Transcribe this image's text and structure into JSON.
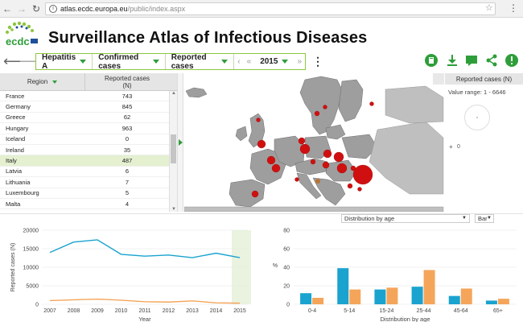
{
  "browser": {
    "url_host": "atlas.ecdc.europa.eu",
    "url_path": "/public/index.aspx"
  },
  "header": {
    "logo_text": "ecdc",
    "title": "Surveillance Atlas of Infectious Diseases"
  },
  "toolbar": {
    "disease": "Hepatitis A",
    "indicator": "Confirmed cases",
    "measure": "Reported cases",
    "year": "2015"
  },
  "table": {
    "col_region": "Region",
    "col_cases_line1": "Reported cases",
    "col_cases_line2": "(N)",
    "rows": [
      {
        "region": "France",
        "value": "743"
      },
      {
        "region": "Germany",
        "value": "845"
      },
      {
        "region": "Greece",
        "value": "62"
      },
      {
        "region": "Hungary",
        "value": "963"
      },
      {
        "region": "Iceland",
        "value": "0"
      },
      {
        "region": "Ireland",
        "value": "35"
      },
      {
        "region": "Italy",
        "value": "487",
        "selected": true
      },
      {
        "region": "Latvia",
        "value": "6"
      },
      {
        "region": "Lithuania",
        "value": "7"
      },
      {
        "region": "Luxembourg",
        "value": "5"
      },
      {
        "region": "Malta",
        "value": "4"
      }
    ]
  },
  "legend": {
    "title": "Reported cases (N)",
    "value_range": "Value range: 1 - 6646",
    "plus": "+",
    "zero": "0"
  },
  "controls": {
    "distribution_select": "Distribution by age",
    "chart_type_select": "Bar"
  },
  "colors": {
    "accent_green": "#2e9e3a",
    "map_land": "#9e9e9e",
    "bubble_red": "#d01010",
    "line_blue": "#1aa3cf",
    "line_orange": "#f5a55a"
  },
  "icons": [
    "back-arrow-icon",
    "forward-arrow-icon",
    "book-icon",
    "download-icon",
    "comment-icon",
    "share-icon",
    "info-icon"
  ],
  "chart_data": [
    {
      "type": "line",
      "title": "",
      "xlabel": "Year",
      "ylabel": "Reported cases (N)",
      "x": [
        "2007",
        "2008",
        "2009",
        "2010",
        "2011",
        "2012",
        "2013",
        "2014",
        "2015"
      ],
      "ylim": [
        0,
        20000
      ],
      "yticks": [
        "0",
        "5000",
        "10000",
        "15000",
        "20000"
      ],
      "series": [
        {
          "values": [
            14000,
            16800,
            17400,
            13500,
            13000,
            13300,
            12600,
            13800,
            12600
          ]
        },
        {
          "values": [
            1000,
            1200,
            1400,
            1100,
            700,
            600,
            900,
            400,
            300
          ]
        }
      ],
      "highlight_x": "2015"
    },
    {
      "type": "bar",
      "title": "",
      "xlabel": "Distribution by age",
      "ylabel": "%",
      "categories": [
        "0-4",
        "5-14",
        "15-24",
        "25-44",
        "45-64",
        "65+"
      ],
      "ylim": [
        0,
        80
      ],
      "yticks": [
        "0",
        "20",
        "40",
        "60",
        "80"
      ],
      "series": [
        {
          "values": [
            12,
            39,
            16,
            19,
            9,
            4
          ]
        },
        {
          "values": [
            7,
            16,
            18,
            37,
            17,
            6
          ]
        }
      ]
    }
  ]
}
